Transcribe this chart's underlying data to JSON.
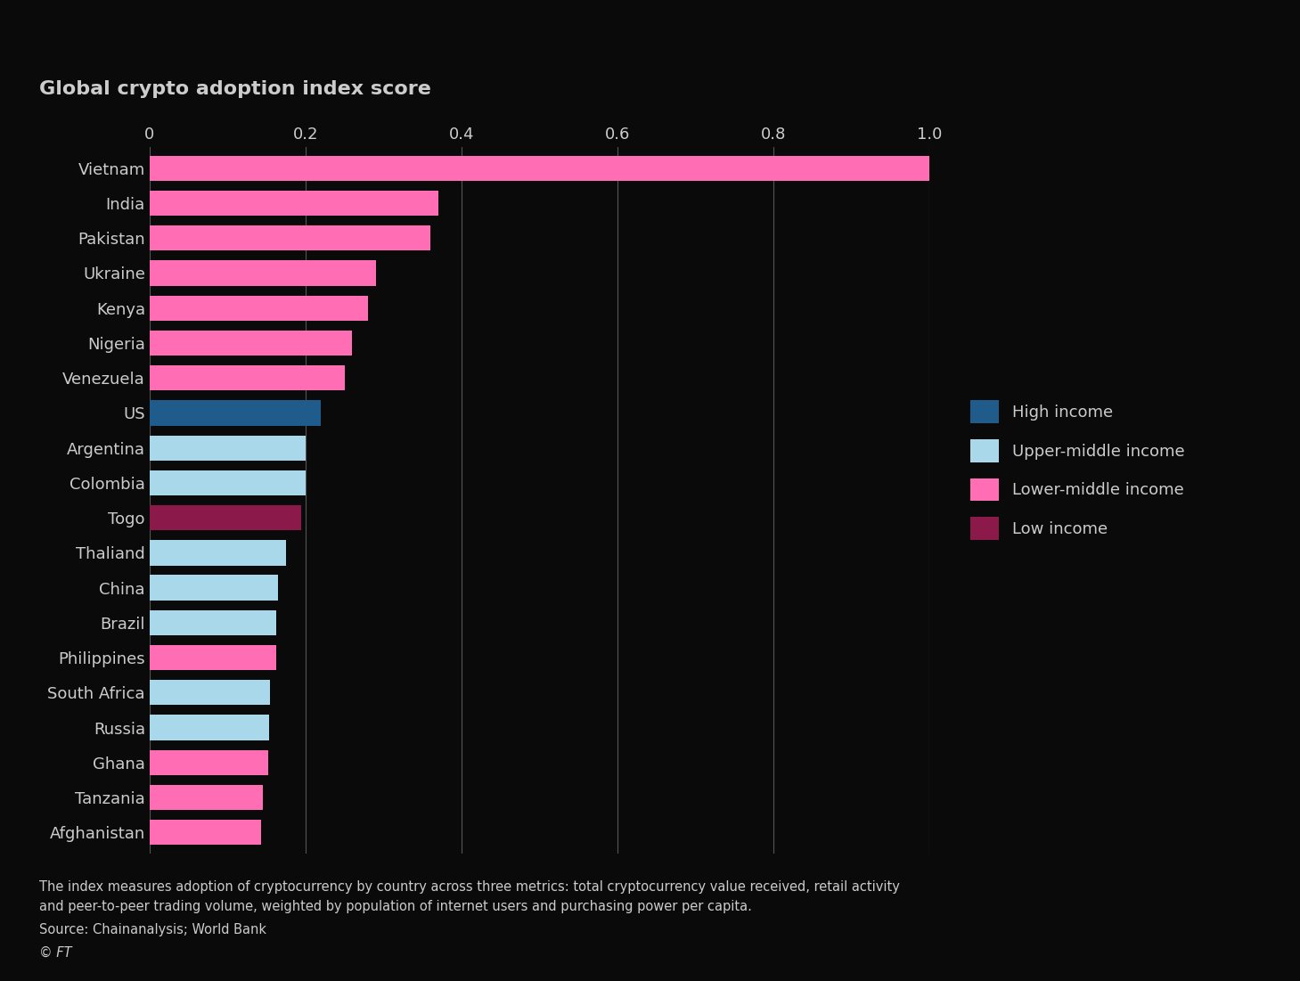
{
  "title": "Global crypto adoption index score",
  "countries": [
    "Vietnam",
    "India",
    "Pakistan",
    "Ukraine",
    "Kenya",
    "Nigeria",
    "Venezuela",
    "US",
    "Argentina",
    "Colombia",
    "Togo",
    "Thaliand",
    "China",
    "Brazil",
    "Philippines",
    "South Africa",
    "Russia",
    "Ghana",
    "Tanzania",
    "Afghanistan"
  ],
  "values": [
    1.0,
    0.37,
    0.36,
    0.29,
    0.28,
    0.26,
    0.25,
    0.22,
    0.2,
    0.2,
    0.195,
    0.175,
    0.165,
    0.163,
    0.162,
    0.155,
    0.153,
    0.152,
    0.145,
    0.143
  ],
  "income_category": [
    "lower-middle",
    "lower-middle",
    "lower-middle",
    "lower-middle",
    "lower-middle",
    "lower-middle",
    "lower-middle",
    "high",
    "upper-middle",
    "upper-middle",
    "low",
    "upper-middle",
    "upper-middle",
    "upper-middle",
    "lower-middle",
    "upper-middle",
    "upper-middle",
    "lower-middle",
    "lower-middle",
    "lower-middle"
  ],
  "colors": {
    "high": "#1f5c8b",
    "upper-middle": "#a8d8ea",
    "lower-middle": "#ff6eb4",
    "low": "#8b1a4a"
  },
  "legend_labels": {
    "high": "High income",
    "upper-middle": "Upper-middle income",
    "lower-middle": "Lower-middle income",
    "low": "Low income"
  },
  "xlim": [
    0,
    1.0
  ],
  "xticks": [
    0,
    0.2,
    0.4,
    0.6,
    0.8,
    1.0
  ],
  "xtick_labels": [
    "0",
    "0.2",
    "0.4",
    "0.6",
    "0.8",
    "1.0"
  ],
  "background_color": "#0a0a0a",
  "text_color": "#cccccc",
  "grid_color": "#555555",
  "bar_height": 0.72,
  "footnote1": "The index measures adoption of cryptocurrency by country across three metrics: total cryptocurrency value received, retail activity",
  "footnote2": "and peer-to-peer trading volume, weighted by population of internet users and purchasing power per capita.",
  "footnote3": "Source: Chainanalysis; World Bank",
  "footnote4": "© FT"
}
